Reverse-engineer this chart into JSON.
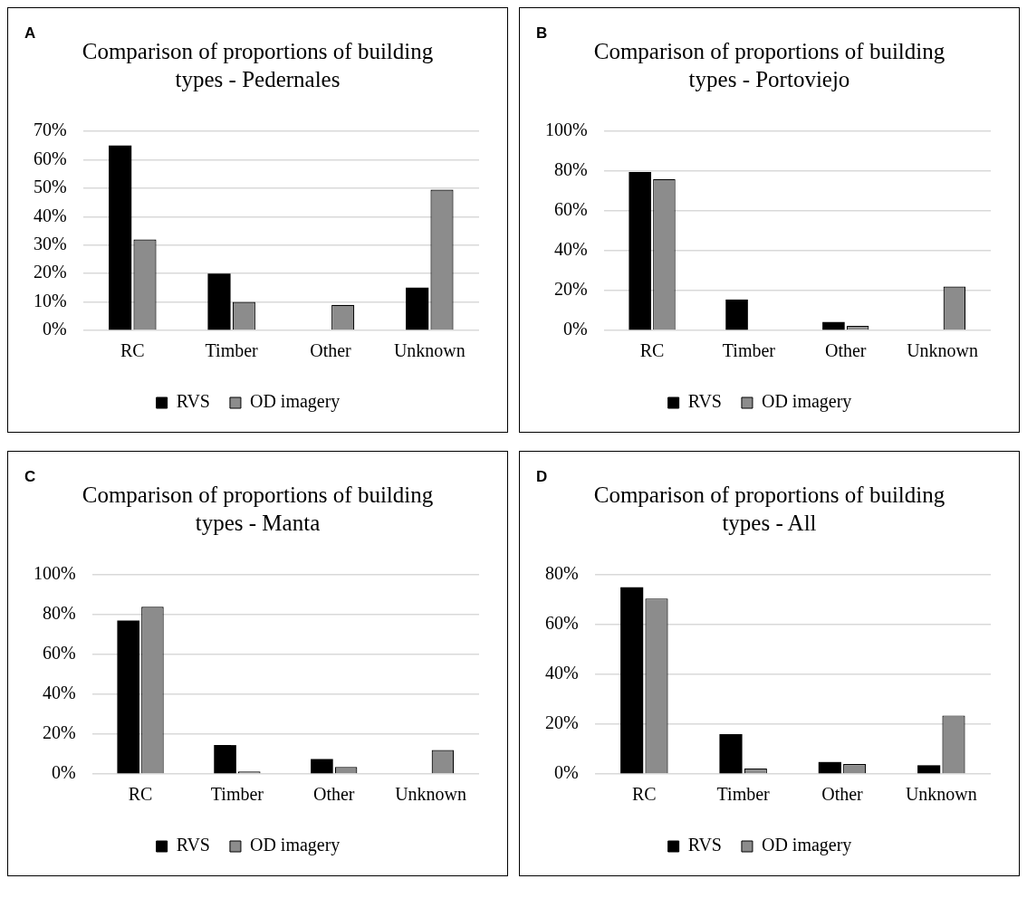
{
  "chart_data": [
    {
      "type": "bar",
      "title": "Comparison of proportions of building types - Pedernales",
      "annotations": [
        "A"
      ],
      "categories": [
        "RC",
        "Timber",
        "Other",
        "Unknown"
      ],
      "series": [
        {
          "name": "RVS",
          "color": "#000000",
          "values": [
            65,
            20,
            0,
            15
          ]
        },
        {
          "name": "OD imagery",
          "color": "#8c8c8c",
          "values": [
            32,
            10,
            9,
            49.5
          ]
        }
      ],
      "ylim": [
        0,
        70
      ],
      "yticks": [
        {
          "value": 0,
          "label": "0%"
        },
        {
          "value": 10,
          "label": "10%"
        },
        {
          "value": 20,
          "label": "20%"
        },
        {
          "value": 30,
          "label": "30%"
        },
        {
          "value": 40,
          "label": "40%"
        },
        {
          "value": 50,
          "label": "50%"
        },
        {
          "value": 60,
          "label": "60%"
        },
        {
          "value": 70,
          "label": "70%"
        }
      ],
      "grid": "y",
      "legend": "bottom"
    },
    {
      "type": "bar",
      "title": "Comparison of proportions of building types - Portoviejo",
      "annotations": [
        "B"
      ],
      "categories": [
        "RC",
        "Timber",
        "Other",
        "Unknown"
      ],
      "series": [
        {
          "name": "RVS",
          "color": "#000000",
          "values": [
            79.5,
            15.5,
            4.2,
            0
          ]
        },
        {
          "name": "OD imagery",
          "color": "#8c8c8c",
          "values": [
            76,
            0,
            2.3,
            22
          ]
        }
      ],
      "ylim": [
        0,
        100
      ],
      "yticks": [
        {
          "value": 0,
          "label": "0%"
        },
        {
          "value": 20,
          "label": "20%"
        },
        {
          "value": 40,
          "label": "40%"
        },
        {
          "value": 60,
          "label": "60%"
        },
        {
          "value": 80,
          "label": "80%"
        },
        {
          "value": 100,
          "label": "100%"
        }
      ],
      "grid": "y",
      "legend": "bottom"
    },
    {
      "type": "bar",
      "title": "Comparison of proportions of building types - Manta",
      "annotations": [
        "C"
      ],
      "categories": [
        "RC",
        "Timber",
        "Other",
        "Unknown"
      ],
      "series": [
        {
          "name": "RVS",
          "color": "#000000",
          "values": [
            77,
            14.5,
            7.5,
            0
          ]
        },
        {
          "name": "OD imagery",
          "color": "#8c8c8c",
          "values": [
            84,
            1.2,
            3.5,
            12
          ]
        }
      ],
      "ylim": [
        0,
        100
      ],
      "yticks": [
        {
          "value": 0,
          "label": "0%"
        },
        {
          "value": 20,
          "label": "20%"
        },
        {
          "value": 40,
          "label": "40%"
        },
        {
          "value": 60,
          "label": "60%"
        },
        {
          "value": 80,
          "label": "80%"
        },
        {
          "value": 100,
          "label": "100%"
        }
      ],
      "grid": "y",
      "legend": "bottom"
    },
    {
      "type": "bar",
      "title": "Comparison of proportions of building types - All",
      "annotations": [
        "D"
      ],
      "categories": [
        "RC",
        "Timber",
        "Other",
        "Unknown"
      ],
      "series": [
        {
          "name": "RVS",
          "color": "#000000",
          "values": [
            75,
            16,
            4.8,
            3.5
          ]
        },
        {
          "name": "OD imagery",
          "color": "#8c8c8c",
          "values": [
            70.5,
            2.2,
            4,
            23.5
          ]
        }
      ],
      "ylim": [
        0,
        80
      ],
      "yticks": [
        {
          "value": 0,
          "label": "0%"
        },
        {
          "value": 20,
          "label": "20%"
        },
        {
          "value": 40,
          "label": "40%"
        },
        {
          "value": 60,
          "label": "60%"
        },
        {
          "value": 80,
          "label": "80%"
        }
      ],
      "grid": "y",
      "legend": "bottom"
    }
  ]
}
